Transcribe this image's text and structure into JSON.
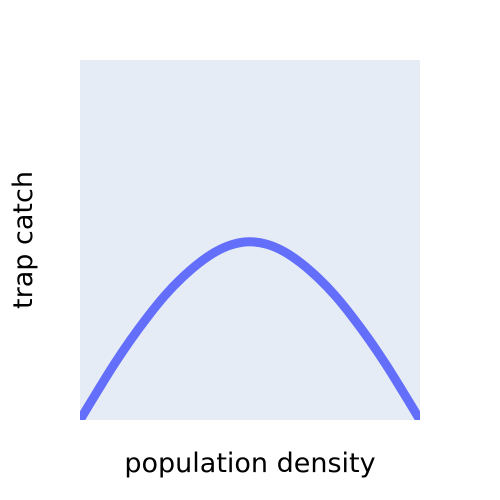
{
  "chart_data": {
    "type": "line",
    "title": "",
    "xlabel": "population density",
    "ylabel": "trap catch",
    "xlim": [
      0,
      1
    ],
    "ylim": [
      0,
      1
    ],
    "show_ticks": false,
    "grid": false,
    "legend": "none",
    "series": [
      {
        "x": [
          0,
          0.05,
          0.1,
          0.15,
          0.2,
          0.25,
          0.3,
          0.35,
          0.4,
          0.45,
          0.5,
          0.55,
          0.6,
          0.65,
          0.7,
          0.75,
          0.8,
          0.85,
          0.9,
          0.95,
          1
        ],
        "y": [
          0,
          0.078,
          0.154,
          0.224,
          0.288,
          0.346,
          0.395,
          0.436,
          0.468,
          0.488,
          0.495,
          0.488,
          0.468,
          0.436,
          0.395,
          0.346,
          0.288,
          0.224,
          0.154,
          0.078,
          0
        ],
        "color": "#636efa"
      }
    ]
  },
  "style": {
    "plot_bg": "#e5ecf6",
    "paper_bg": "#ffffff"
  }
}
